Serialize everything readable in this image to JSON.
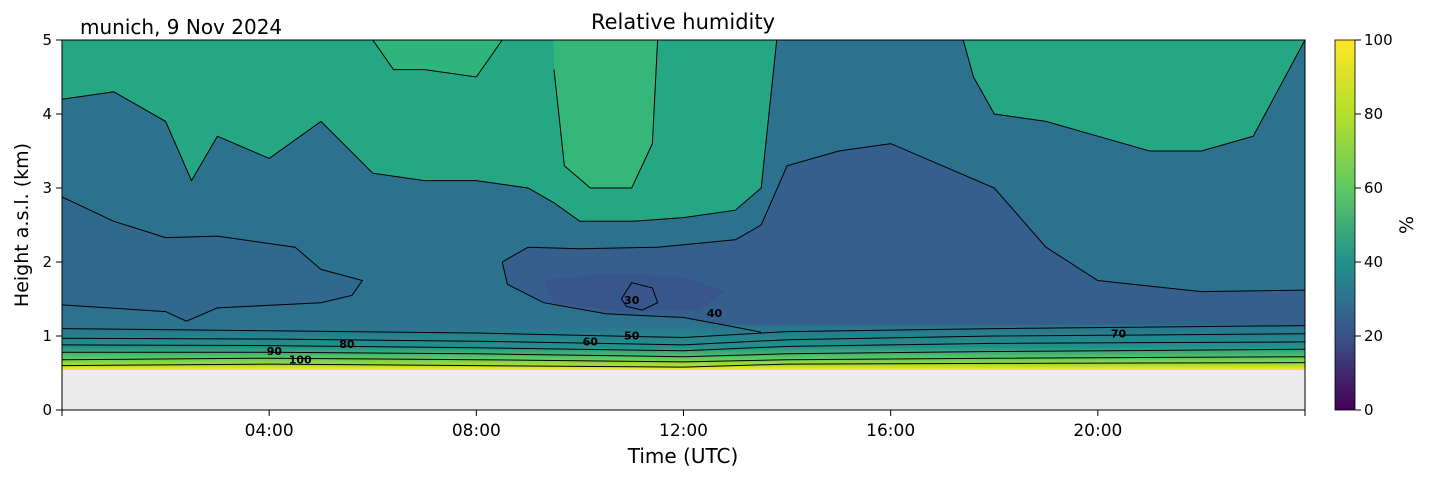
{
  "chart_data": {
    "type": "heatmap",
    "title": "Relative humidity",
    "subtitle": "munich, 9 Nov 2024",
    "xlabel": "Time (UTC)",
    "ylabel": "Height a.s.l. (km)",
    "colorbar_label": "%",
    "xlim": [
      0,
      24
    ],
    "ylim": [
      0,
      5
    ],
    "x_ticks": [
      0,
      4,
      8,
      12,
      16,
      20,
      24
    ],
    "x_tick_labels": [
      "04:00",
      "08:00",
      "12:00",
      "16:00",
      "20:00"
    ],
    "x_tick_label_positions": [
      4,
      8,
      12,
      16,
      20
    ],
    "y_ticks": [
      0,
      1,
      2,
      3,
      4,
      5
    ],
    "y_tick_labels": [
      "0",
      "1",
      "2",
      "3",
      "4",
      "5"
    ],
    "colorbar_range": [
      0,
      100
    ],
    "colorbar_ticks": [
      "0",
      "20",
      "40",
      "60",
      "80",
      "100"
    ],
    "colormap": "viridis",
    "missing_below_km": 0.55,
    "contour_labels": [
      {
        "text": "90",
        "x": 4.1,
        "y": 0.74
      },
      {
        "text": "100",
        "x": 4.6,
        "y": 0.63
      },
      {
        "text": "80",
        "x": 5.5,
        "y": 0.84
      },
      {
        "text": "60",
        "x": 10.2,
        "y": 0.87
      },
      {
        "text": "50",
        "x": 11.0,
        "y": 0.95
      },
      {
        "text": "30",
        "x": 11.0,
        "y": 1.43
      },
      {
        "text": "40",
        "x": 12.6,
        "y": 1.26
      },
      {
        "text": "70",
        "x": 20.4,
        "y": 0.98
      }
    ],
    "contours": [
      {
        "level": 100,
        "pts": [
          [
            0,
            0.6
          ],
          [
            4,
            0.62
          ],
          [
            8,
            0.6
          ],
          [
            12,
            0.58
          ],
          [
            14,
            0.62
          ],
          [
            18,
            0.63
          ],
          [
            24,
            0.64
          ]
        ]
      },
      {
        "level": 90,
        "pts": [
          [
            0,
            0.68
          ],
          [
            4,
            0.7
          ],
          [
            8,
            0.68
          ],
          [
            12,
            0.65
          ],
          [
            14,
            0.68
          ],
          [
            18,
            0.7
          ],
          [
            24,
            0.72
          ]
        ]
      },
      {
        "level": 80,
        "pts": [
          [
            0,
            0.78
          ],
          [
            4,
            0.78
          ],
          [
            8,
            0.76
          ],
          [
            12,
            0.72
          ],
          [
            14,
            0.76
          ],
          [
            18,
            0.79
          ],
          [
            24,
            0.82
          ]
        ]
      },
      {
        "level": 70,
        "pts": [
          [
            0,
            0.88
          ],
          [
            4,
            0.87
          ],
          [
            8,
            0.84
          ],
          [
            12,
            0.8
          ],
          [
            14,
            0.86
          ],
          [
            18,
            0.9
          ],
          [
            24,
            0.92
          ]
        ]
      },
      {
        "level": 60,
        "pts": [
          [
            0,
            0.97
          ],
          [
            4,
            0.96
          ],
          [
            8,
            0.93
          ],
          [
            12,
            0.88
          ],
          [
            14,
            0.95
          ],
          [
            18,
            1.0
          ],
          [
            24,
            1.03
          ]
        ]
      },
      {
        "level": 50,
        "pts": [
          [
            0,
            1.1
          ],
          [
            4,
            1.07
          ],
          [
            8,
            1.04
          ],
          [
            12,
            0.98
          ],
          [
            14,
            1.06
          ],
          [
            18,
            1.1
          ],
          [
            24,
            1.14
          ]
        ]
      },
      {
        "level": 40,
        "pts": [
          [
            0,
            1.42
          ],
          [
            2,
            1.33
          ],
          [
            2.4,
            1.2
          ],
          [
            3,
            1.38
          ],
          [
            5,
            1.45
          ],
          [
            5.6,
            1.55
          ],
          [
            5.8,
            1.75
          ],
          [
            5,
            1.9
          ],
          [
            4.5,
            2.2
          ],
          [
            3,
            2.35
          ],
          [
            2,
            2.33
          ],
          [
            1,
            2.55
          ],
          [
            0,
            2.88
          ]
        ]
      },
      {
        "level": 40,
        "pts": [
          [
            8.5,
            2.0
          ],
          [
            9,
            2.2
          ],
          [
            10,
            2.18
          ],
          [
            11.5,
            2.2
          ],
          [
            13,
            2.3
          ],
          [
            13.5,
            2.5
          ],
          [
            14,
            3.3
          ],
          [
            15,
            3.5
          ],
          [
            16,
            3.6
          ],
          [
            17,
            3.3
          ],
          [
            18,
            3.0
          ],
          [
            19,
            2.2
          ],
          [
            20,
            1.75
          ],
          [
            22,
            1.6
          ],
          [
            24,
            1.62
          ]
        ]
      },
      {
        "level": 40,
        "pts": [
          [
            8.5,
            2.0
          ],
          [
            8.6,
            1.7
          ],
          [
            9.3,
            1.45
          ],
          [
            10.5,
            1.3
          ],
          [
            12,
            1.25
          ],
          [
            13,
            1.12
          ],
          [
            13.5,
            1.05
          ]
        ]
      },
      {
        "level": 30,
        "pts": [
          [
            10.8,
            1.5
          ],
          [
            11.0,
            1.72
          ],
          [
            11.4,
            1.65
          ],
          [
            11.5,
            1.45
          ],
          [
            11.2,
            1.35
          ],
          [
            10.9,
            1.4
          ],
          [
            10.8,
            1.5
          ]
        ]
      },
      {
        "level": 50,
        "pts": [
          [
            0,
            4.2
          ],
          [
            1,
            4.3
          ],
          [
            2,
            3.9
          ],
          [
            2.5,
            3.1
          ],
          [
            3,
            3.7
          ],
          [
            4,
            3.4
          ],
          [
            5,
            3.9
          ],
          [
            6,
            3.2
          ],
          [
            7,
            3.1
          ],
          [
            8,
            3.1
          ],
          [
            9,
            3.0
          ],
          [
            9.5,
            2.8
          ],
          [
            10,
            2.55
          ],
          [
            11,
            2.55
          ],
          [
            12,
            2.6
          ],
          [
            13,
            2.7
          ],
          [
            13.5,
            3.0
          ],
          [
            13.8,
            5.0
          ]
        ]
      },
      {
        "level": 50,
        "pts": [
          [
            17.4,
            5.0
          ],
          [
            17.6,
            4.5
          ],
          [
            18,
            4.0
          ],
          [
            19,
            3.9
          ],
          [
            20,
            3.7
          ],
          [
            21,
            3.5
          ],
          [
            22,
            3.5
          ],
          [
            23,
            3.7
          ],
          [
            24,
            5.0
          ]
        ]
      },
      {
        "level": 60,
        "pts": [
          [
            6,
            5.0
          ],
          [
            6.4,
            4.6
          ],
          [
            7,
            4.6
          ],
          [
            8,
            4.5
          ],
          [
            8.5,
            5.0
          ]
        ]
      },
      {
        "level": 60,
        "pts": [
          [
            9.5,
            4.6
          ],
          [
            9.7,
            3.3
          ],
          [
            10.2,
            3.0
          ],
          [
            11,
            3.0
          ],
          [
            11.4,
            3.6
          ],
          [
            11.5,
            5.0
          ]
        ]
      }
    ]
  }
}
